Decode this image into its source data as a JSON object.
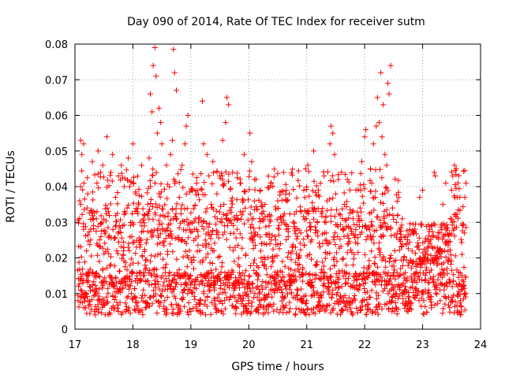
{
  "chart_data": {
    "type": "scatter",
    "title": "Day 090 of 2014, Rate Of TEC Index for receiver sutm",
    "xlabel": "GPS time / hours",
    "ylabel": "ROTI / TECUs",
    "xlim": [
      17,
      24
    ],
    "ylim": [
      0,
      0.08
    ],
    "grid": true,
    "marker": "+",
    "color": "#ff0000",
    "x_ticks": [
      "17",
      "18",
      "19",
      "20",
      "21",
      "22",
      "23",
      "24"
    ],
    "y_ticks": [
      "0",
      "0.01",
      "0.02",
      "0.03",
      "0.04",
      "0.05",
      "0.06",
      "0.07",
      "0.08"
    ],
    "x_tick_values": [
      17,
      18,
      19,
      20,
      21,
      22,
      23,
      24
    ],
    "y_tick_values": [
      0,
      0.01,
      0.02,
      0.03,
      0.04,
      0.05,
      0.06,
      0.07,
      0.08
    ],
    "data_x_range": [
      17.05,
      23.75
    ],
    "series": [
      {
        "name": "ROTI",
        "points": [
          [
            17.05,
            0.0095
          ],
          [
            17.1,
            0.035
          ],
          [
            17.1,
            0.053
          ],
          [
            17.12,
            0.049
          ],
          [
            17.15,
            0.052
          ],
          [
            17.15,
            0.028
          ],
          [
            17.18,
            0.006
          ],
          [
            17.2,
            0.022
          ],
          [
            17.22,
            0.038
          ],
          [
            17.25,
            0.012
          ],
          [
            17.3,
            0.047
          ],
          [
            17.32,
            0.031
          ],
          [
            17.35,
            0.004
          ],
          [
            17.38,
            0.041
          ],
          [
            17.4,
            0.05
          ],
          [
            17.42,
            0.019
          ],
          [
            17.45,
            0.026
          ],
          [
            17.48,
            0.046
          ],
          [
            17.5,
            0.008
          ],
          [
            17.55,
            0.054
          ],
          [
            17.58,
            0.033
          ],
          [
            17.6,
            0.015
          ],
          [
            17.62,
            0.044
          ],
          [
            17.65,
            0.049
          ],
          [
            17.68,
            0.006
          ],
          [
            17.7,
            0.037
          ],
          [
            17.72,
            0.022
          ],
          [
            17.75,
            0.043
          ],
          [
            17.78,
            0.011
          ],
          [
            17.8,
            0.046
          ],
          [
            17.82,
            0.029
          ],
          [
            17.85,
            0.04
          ],
          [
            17.88,
            0.005
          ],
          [
            17.9,
            0.034
          ],
          [
            17.92,
            0.048
          ],
          [
            17.95,
            0.018
          ],
          [
            17.98,
            0.026
          ],
          [
            18.0,
            0.052
          ],
          [
            18.02,
            0.009
          ],
          [
            18.05,
            0.038
          ],
          [
            18.08,
            0.013
          ],
          [
            18.1,
            0.035
          ],
          [
            18.12,
            0.023
          ],
          [
            18.15,
            0.046
          ],
          [
            18.18,
            0.011
          ],
          [
            18.2,
            0.029
          ],
          [
            18.22,
            0.006
          ],
          [
            18.25,
            0.032
          ],
          [
            18.28,
            0.048
          ],
          [
            18.3,
            0.019
          ],
          [
            18.3,
            0.066
          ],
          [
            18.33,
            0.061
          ],
          [
            18.35,
            0.074
          ],
          [
            18.38,
            0.079
          ],
          [
            18.4,
            0.071
          ],
          [
            18.42,
            0.055
          ],
          [
            18.45,
            0.062
          ],
          [
            18.48,
            0.058
          ],
          [
            18.5,
            0.052
          ],
          [
            18.52,
            0.032
          ],
          [
            18.55,
            0.008
          ],
          [
            18.58,
            0.046
          ],
          [
            18.6,
            0.021
          ],
          [
            18.65,
            0.049
          ],
          [
            18.68,
            0.053
          ],
          [
            18.7,
            0.0785
          ],
          [
            18.72,
            0.072
          ],
          [
            18.75,
            0.067
          ],
          [
            18.78,
            0.015
          ],
          [
            18.8,
            0.037
          ],
          [
            18.85,
            0.046
          ],
          [
            18.88,
            0.011
          ],
          [
            18.9,
            0.052
          ],
          [
            18.92,
            0.057
          ],
          [
            18.95,
            0.06
          ],
          [
            18.98,
            0.028
          ],
          [
            19.0,
            0.005
          ],
          [
            19.02,
            0.039
          ],
          [
            19.05,
            0.017
          ],
          [
            19.08,
            0.031
          ],
          [
            19.1,
            0.041
          ],
          [
            19.15,
            0.007
          ],
          [
            19.2,
            0.064
          ],
          [
            19.22,
            0.052
          ],
          [
            19.25,
            0.025
          ],
          [
            19.28,
            0.049
          ],
          [
            19.3,
            0.012
          ],
          [
            19.35,
            0.035
          ],
          [
            19.38,
            0.047
          ],
          [
            19.4,
            0.022
          ],
          [
            19.42,
            0.007
          ],
          [
            19.45,
            0.038
          ],
          [
            19.5,
            0.043
          ],
          [
            19.52,
            0.016
          ],
          [
            19.55,
            0.053
          ],
          [
            19.58,
            0.029
          ],
          [
            19.6,
            0.058
          ],
          [
            19.62,
            0.065
          ],
          [
            19.65,
            0.063
          ],
          [
            19.68,
            0.009
          ],
          [
            19.7,
            0.036
          ],
          [
            19.72,
            0.044
          ],
          [
            19.75,
            0.019
          ],
          [
            19.78,
            0.006
          ],
          [
            19.8,
            0.028
          ],
          [
            19.85,
            0.041
          ],
          [
            19.88,
            0.013
          ],
          [
            19.9,
            0.033
          ],
          [
            19.92,
            0.049
          ],
          [
            19.95,
            0.021
          ],
          [
            20.0,
            0.008
          ],
          [
            20.02,
            0.055
          ],
          [
            20.05,
            0.047
          ],
          [
            20.08,
            0.031
          ],
          [
            20.1,
            0.042
          ],
          [
            20.15,
            0.012
          ],
          [
            20.2,
            0.039
          ],
          [
            20.22,
            0.024
          ],
          [
            20.25,
            0.006
          ],
          [
            20.28,
            0.035
          ],
          [
            20.3,
            0.017
          ],
          [
            20.35,
            0.029
          ],
          [
            20.38,
            0.041
          ],
          [
            20.4,
            0.009
          ],
          [
            20.45,
            0.026
          ],
          [
            20.5,
            0.036
          ],
          [
            20.52,
            0.011
          ],
          [
            20.55,
            0.031
          ],
          [
            20.58,
            0.019
          ],
          [
            20.6,
            0.044
          ],
          [
            20.62,
            0.006
          ],
          [
            20.65,
            0.028
          ],
          [
            20.7,
            0.038
          ],
          [
            20.72,
            0.014
          ],
          [
            20.75,
            0.023
          ],
          [
            20.8,
            0.004
          ],
          [
            20.82,
            0.033
          ],
          [
            20.85,
            0.018
          ],
          [
            20.9,
            0.027
          ],
          [
            20.95,
            0.039
          ],
          [
            21.0,
            0.008
          ],
          [
            21.02,
            0.046
          ],
          [
            21.05,
            0.021
          ],
          [
            21.08,
            0.012
          ],
          [
            21.1,
            0.034
          ],
          [
            21.12,
            0.05
          ],
          [
            21.15,
            0.027
          ],
          [
            21.2,
            0.039
          ],
          [
            21.22,
            0.005
          ],
          [
            21.25,
            0.033
          ],
          [
            21.28,
            0.016
          ],
          [
            21.3,
            0.043
          ],
          [
            21.32,
            0.025
          ],
          [
            21.35,
            0.036
          ],
          [
            21.38,
            0.011
          ],
          [
            21.4,
            0.052
          ],
          [
            21.42,
            0.057
          ],
          [
            21.45,
            0.055
          ],
          [
            21.48,
            0.049
          ],
          [
            21.5,
            0.038
          ],
          [
            21.52,
            0.019
          ],
          [
            21.55,
            0.007
          ],
          [
            21.6,
            0.044
          ],
          [
            21.62,
            0.028
          ],
          [
            21.65,
            0.035
          ],
          [
            21.68,
            0.013
          ],
          [
            21.7,
            0.042
          ],
          [
            21.72,
            0.024
          ],
          [
            21.75,
            0.006
          ],
          [
            21.8,
            0.031
          ],
          [
            21.82,
            0.021
          ],
          [
            21.85,
            0.039
          ],
          [
            21.9,
            0.011
          ],
          [
            21.92,
            0.034
          ],
          [
            21.95,
            0.047
          ],
          [
            22.0,
            0.054
          ],
          [
            22.02,
            0.056
          ],
          [
            22.05,
            0.026
          ],
          [
            22.08,
            0.009
          ],
          [
            22.1,
            0.045
          ],
          [
            22.12,
            0.041
          ],
          [
            22.15,
            0.052
          ],
          [
            22.18,
            0.037
          ],
          [
            22.2,
            0.057
          ],
          [
            22.22,
            0.065
          ],
          [
            22.25,
            0.058
          ],
          [
            22.28,
            0.072
          ],
          [
            22.3,
            0.054
          ],
          [
            22.32,
            0.063
          ],
          [
            22.35,
            0.049
          ],
          [
            22.38,
            0.046
          ],
          [
            22.4,
            0.069
          ],
          [
            22.42,
            0.066
          ],
          [
            22.45,
            0.074
          ],
          [
            22.48,
            0.034
          ],
          [
            22.5,
            0.011
          ],
          [
            22.52,
            0.022
          ],
          [
            22.55,
            0.006
          ],
          [
            22.6,
            0.028
          ],
          [
            22.62,
            0.017
          ],
          [
            22.65,
            0.031
          ],
          [
            22.7,
            0.012
          ],
          [
            22.72,
            0.024
          ],
          [
            22.75,
            0.005
          ],
          [
            22.8,
            0.019
          ],
          [
            22.85,
            0.027
          ],
          [
            22.88,
            0.011
          ],
          [
            22.9,
            0.016
          ],
          [
            22.95,
            0.037
          ],
          [
            23.0,
            0.039
          ],
          [
            23.02,
            0.008
          ],
          [
            23.05,
            0.021
          ],
          [
            23.1,
            0.013
          ],
          [
            23.12,
            0.028
          ],
          [
            23.15,
            0.006
          ],
          [
            23.2,
            0.044
          ],
          [
            23.22,
            0.043
          ],
          [
            23.25,
            0.018
          ],
          [
            23.3,
            0.011
          ],
          [
            23.35,
            0.035
          ],
          [
            23.38,
            0.029
          ],
          [
            23.4,
            0.041
          ],
          [
            23.42,
            0.017
          ],
          [
            23.45,
            0.009
          ],
          [
            23.48,
            0.031
          ],
          [
            23.5,
            0.039
          ],
          [
            23.52,
            0.043
          ],
          [
            23.55,
            0.046
          ],
          [
            23.58,
            0.045
          ],
          [
            23.6,
            0.037
          ],
          [
            23.62,
            0.016
          ],
          [
            23.65,
            0.004
          ],
          [
            23.68,
            0.021
          ],
          [
            23.7,
            0.012
          ],
          [
            23.72,
            0.027
          ],
          [
            23.75,
            0.041
          ]
        ]
      }
    ]
  }
}
